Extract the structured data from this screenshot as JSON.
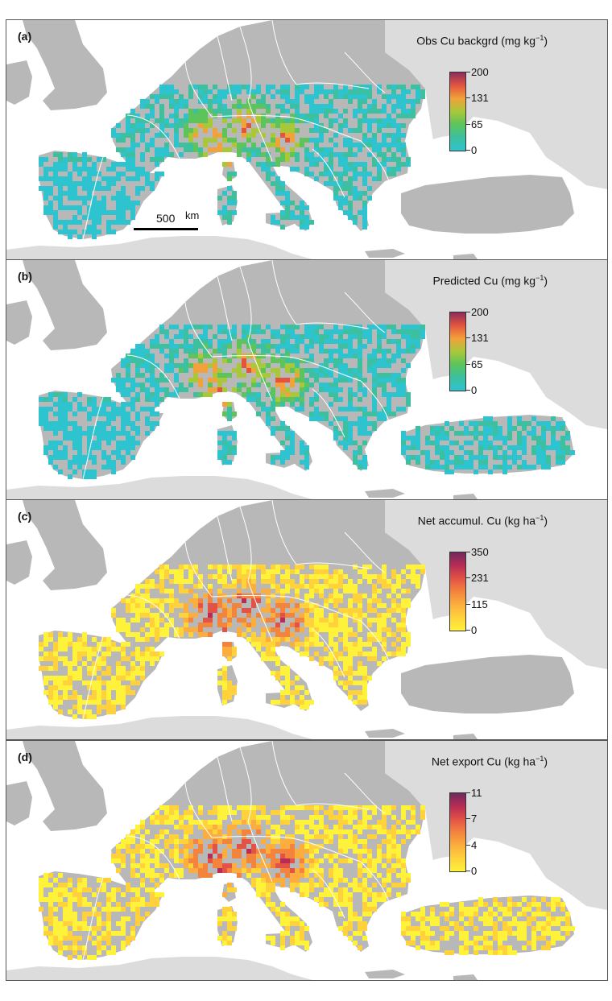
{
  "panels": [
    {
      "label": "(a)",
      "title": "Obs Cu backgrd",
      "unit": "(mg kg",
      "unit_exp": "−1",
      "unit_close": ")",
      "scale": "viridis",
      "ticks": [
        "200",
        "131",
        "65",
        "0"
      ],
      "extent": "west",
      "colors": [
        "#2ec4cf",
        "#3cc0a0",
        "#5cc45a",
        "#a8c83a",
        "#f2a23a",
        "#e3543f",
        "#8b2d5c"
      ]
    },
    {
      "label": "(b)",
      "title": "Predicted Cu",
      "unit": "(mg kg",
      "unit_exp": "−1",
      "unit_close": ")",
      "scale": "viridis",
      "ticks": [
        "200",
        "131",
        "65",
        "0"
      ],
      "extent": "full",
      "colors": [
        "#2ec4cf",
        "#3cc0a0",
        "#5cc45a",
        "#a8c83a",
        "#f2a23a",
        "#e3543f",
        "#8b2d5c"
      ]
    },
    {
      "label": "(c)",
      "title": "Net accumul. Cu",
      "unit": "(kg ha",
      "unit_exp": "−1",
      "unit_close": ")",
      "scale": "heat",
      "ticks": [
        "350",
        "231",
        "115",
        "0"
      ],
      "extent": "west",
      "colors": [
        "#fff23a",
        "#ffd23c",
        "#fbae3e",
        "#f3843e",
        "#e25246",
        "#b72c54",
        "#6e2a5e"
      ]
    },
    {
      "label": "(d)",
      "title": "Net export Cu",
      "unit": "(kg ha",
      "unit_exp": "−1",
      "unit_close": ")",
      "scale": "heat",
      "ticks": [
        "11",
        "7",
        "4",
        "0"
      ],
      "extent": "full",
      "colors": [
        "#fff23a",
        "#ffd23c",
        "#fbae3e",
        "#f3843e",
        "#e25246",
        "#b72c54",
        "#6e2a5e"
      ]
    }
  ],
  "scalebar": {
    "value": "500",
    "unit": "km"
  }
}
